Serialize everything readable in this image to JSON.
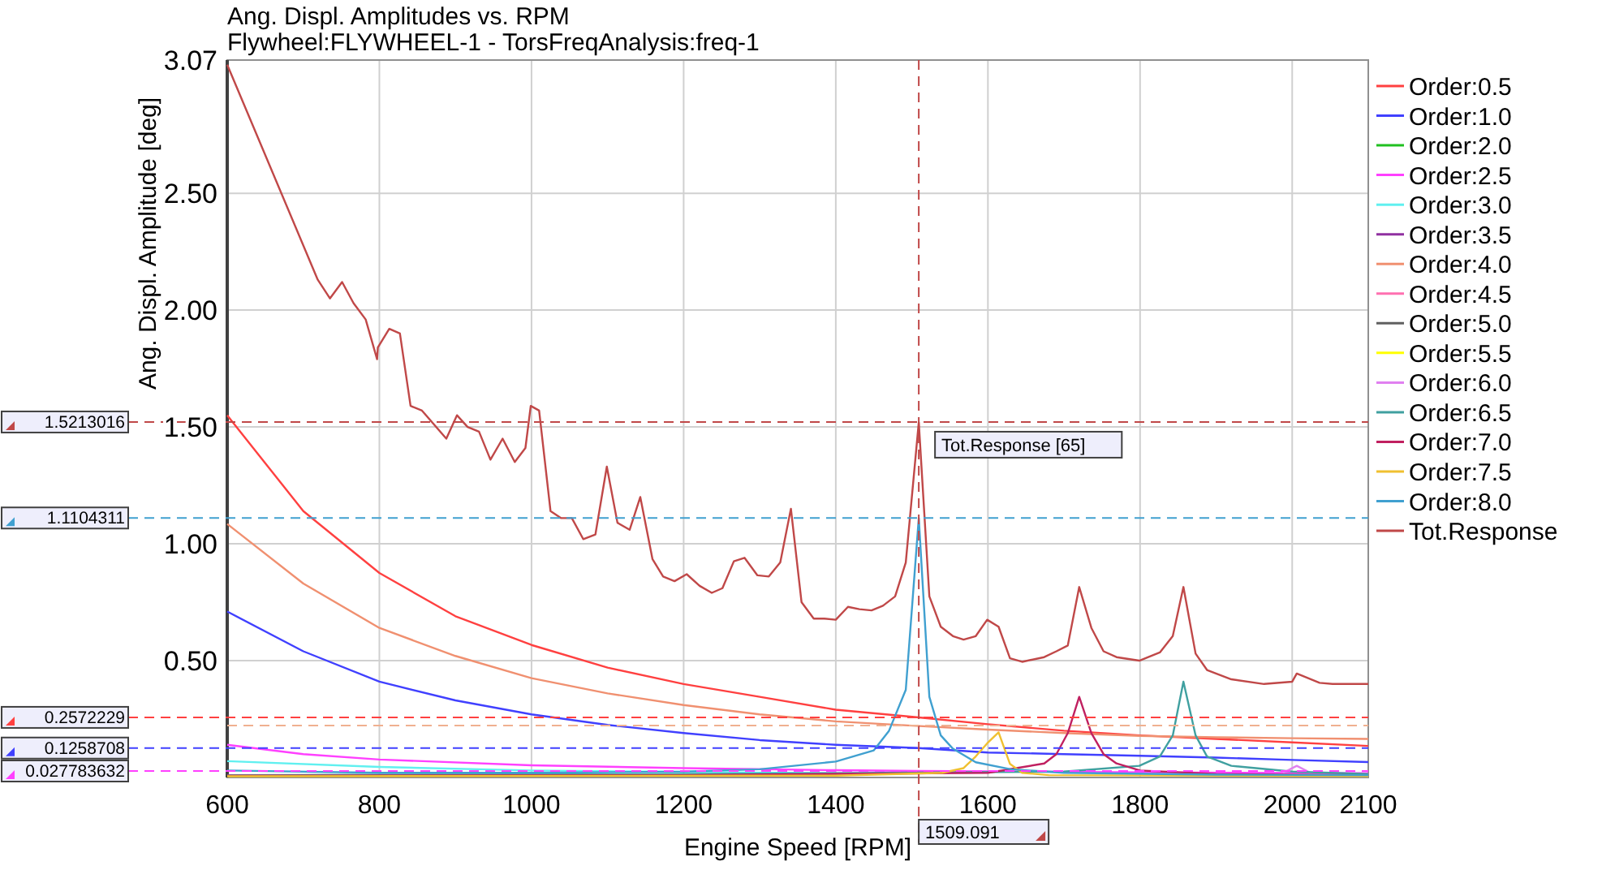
{
  "chart_data": {
    "type": "line",
    "title": "Ang. Displ. Amplitudes vs. RPM",
    "subtitle": "Flywheel:FLYWHEEL-1 - TorsFreqAnalysis:freq-1",
    "xlabel": "Engine Speed [RPM]",
    "ylabel": "Ang. Displ. Amplitude [deg]",
    "xlim": [
      600,
      2100
    ],
    "xticks": [
      600,
      800,
      1000,
      1200,
      1400,
      1600,
      1800,
      2000,
      2100
    ],
    "ylim": [
      0,
      3.07
    ],
    "yticks": [
      {
        "value": 0.5,
        "label": "0.50"
      },
      {
        "value": 1,
        "label": "1.00"
      },
      {
        "value": 1.5,
        "label": "1.50"
      },
      {
        "value": 2,
        "label": "2.00"
      },
      {
        "value": 2.5,
        "label": "2.50"
      },
      3.07
    ],
    "grid": true,
    "legend": "right",
    "series": [
      {
        "name": "Order:0.5",
        "color": "#ff4040",
        "x": [
          600,
          700,
          800,
          900,
          1000,
          1100,
          1200,
          1300,
          1400,
          1509.091,
          1600,
          1700,
          1800,
          1900,
          2000,
          2100
        ],
        "values": [
          1.55,
          1.14,
          0.875,
          0.69,
          0.567,
          0.47,
          0.4,
          0.345,
          0.29,
          0.257,
          0.228,
          0.2,
          0.18,
          0.165,
          0.15,
          0.135
        ]
      },
      {
        "name": "Order:1.0",
        "color": "#4040ff",
        "x": [
          600,
          700,
          800,
          900,
          1000,
          1100,
          1200,
          1300,
          1400,
          1509.091,
          1600,
          1700,
          1800,
          1900,
          2000,
          2100
        ],
        "values": [
          0.71,
          0.54,
          0.41,
          0.33,
          0.27,
          0.225,
          0.19,
          0.16,
          0.14,
          0.126,
          0.107,
          0.1,
          0.093,
          0.085,
          0.075,
          0.066
        ]
      },
      {
        "name": "Order:2.0",
        "color": "#20c020"
      },
      {
        "name": "Order:2.5",
        "color": "#ff40ff",
        "x": [
          600,
          700,
          800,
          1000,
          1200,
          1400,
          1509.091,
          1800,
          2100
        ],
        "values": [
          0.14,
          0.1,
          0.077,
          0.052,
          0.04,
          0.031,
          0.028,
          0.022,
          0.018
        ]
      },
      {
        "name": "Order:3.0",
        "color": "#60f0f0",
        "x": [
          600,
          800,
          1000,
          1400
        ],
        "values": [
          0.07,
          0.045,
          0.03,
          0.018
        ]
      },
      {
        "name": "Order:3.5",
        "color": "#9030a0"
      },
      {
        "name": "Order:4.0",
        "color": "#f09070",
        "x": [
          600,
          700,
          800,
          900,
          1000,
          1100,
          1200,
          1300,
          1400,
          1500,
          1600,
          1700,
          1800,
          1900,
          2000,
          2100
        ],
        "values": [
          1.085,
          0.83,
          0.64,
          0.52,
          0.425,
          0.36,
          0.31,
          0.27,
          0.24,
          0.222,
          0.205,
          0.19,
          0.178,
          0.172,
          0.168,
          0.165
        ]
      },
      {
        "name": "Order:4.5",
        "color": "#ff70b0"
      },
      {
        "name": "Order:5.0",
        "color": "#606060"
      },
      {
        "name": "Order:5.5",
        "color": "#ffff00"
      },
      {
        "name": "Order:6.0",
        "color": "#e080f0",
        "x": [
          1988,
          2006,
          2024
        ],
        "values": [
          0.02,
          0.05,
          0.02
        ]
      },
      {
        "name": "Order:6.5",
        "color": "#40a0a0",
        "x": [
          600,
          1200,
          1700,
          1799,
          1826,
          1843,
          1857,
          1873,
          1888,
          1920,
          2000,
          2100
        ],
        "values": [
          0.01,
          0.015,
          0.025,
          0.05,
          0.09,
          0.18,
          0.41,
          0.18,
          0.09,
          0.05,
          0.025,
          0.015
        ]
      },
      {
        "name": "Order:7.0",
        "color": "#c02060",
        "x": [
          600,
          1200,
          1600,
          1674,
          1690,
          1705,
          1720,
          1736,
          1752,
          1769,
          1800,
          1900,
          2100
        ],
        "values": [
          0.008,
          0.01,
          0.02,
          0.06,
          0.1,
          0.19,
          0.345,
          0.19,
          0.1,
          0.06,
          0.03,
          0.015,
          0.01
        ]
      },
      {
        "name": "Order:7.5",
        "color": "#f0c030",
        "x": [
          600,
          1400,
          1540,
          1568,
          1584,
          1599,
          1614,
          1629,
          1645,
          1680,
          2100
        ],
        "values": [
          0.005,
          0.008,
          0.02,
          0.04,
          0.09,
          0.146,
          0.193,
          0.058,
          0.02,
          0.01,
          0.006
        ]
      },
      {
        "name": "Order:8.0",
        "color": "#40a0d0",
        "x": [
          600,
          800,
          1000,
          1200,
          1300,
          1400,
          1450,
          1470,
          1492,
          1509.091,
          1523,
          1538,
          1554,
          1584,
          1630,
          1700,
          1900,
          2100
        ],
        "values": [
          0.03,
          0.02,
          0.02,
          0.025,
          0.035,
          0.068,
          0.116,
          0.2,
          0.375,
          1.11,
          0.345,
          0.18,
          0.123,
          0.065,
          0.035,
          0.02,
          0.012,
          0.01
        ]
      },
      {
        "name": "Tot.Response",
        "color": "#c04848",
        "x": [
          600,
          719,
          735,
          751,
          766,
          782,
          797,
          798,
          813,
          827,
          841,
          856,
          888,
          902,
          916,
          931,
          946,
          962,
          978,
          992,
          999,
          1010,
          1025,
          1039,
          1053,
          1068,
          1084,
          1099,
          1113,
          1129,
          1143,
          1159,
          1173,
          1188,
          1204,
          1221,
          1237,
          1251,
          1266,
          1280,
          1297,
          1312,
          1327,
          1341,
          1355,
          1371,
          1385,
          1400,
          1416,
          1431,
          1447,
          1462,
          1478,
          1492,
          1509.091,
          1523,
          1538,
          1554,
          1568,
          1584,
          1599,
          1614,
          1629,
          1645,
          1674,
          1690,
          1705,
          1720,
          1736,
          1752,
          1769,
          1799,
          1826,
          1843,
          1857,
          1873,
          1888,
          1920,
          1963,
          2000,
          2006,
          2036,
          2053,
          2100
        ],
        "values": [
          3.05,
          2.13,
          2.05,
          2.12,
          2.03,
          1.96,
          1.79,
          1.84,
          1.92,
          1.9,
          1.59,
          1.57,
          1.45,
          1.55,
          1.5,
          1.48,
          1.36,
          1.45,
          1.35,
          1.41,
          1.59,
          1.57,
          1.14,
          1.11,
          1.11,
          1.02,
          1.04,
          1.33,
          1.09,
          1.06,
          1.2,
          0.935,
          0.86,
          0.84,
          0.87,
          0.82,
          0.79,
          0.81,
          0.925,
          0.94,
          0.865,
          0.86,
          0.92,
          1.15,
          0.75,
          0.68,
          0.68,
          0.675,
          0.73,
          0.72,
          0.715,
          0.735,
          0.775,
          0.92,
          1.52,
          0.775,
          0.645,
          0.605,
          0.59,
          0.605,
          0.675,
          0.645,
          0.51,
          0.495,
          0.515,
          0.54,
          0.565,
          0.815,
          0.64,
          0.54,
          0.515,
          0.5,
          0.535,
          0.605,
          0.815,
          0.53,
          0.46,
          0.42,
          0.4,
          0.41,
          0.445,
          0.405,
          0.4,
          0.4
        ]
      }
    ],
    "ref_lines": [
      {
        "axis": "x",
        "value": 1509.091,
        "label": "1509.091",
        "color": "#c04848",
        "line_style": "dashed"
      },
      {
        "axis": "y",
        "value": 1.5213016,
        "label": "1.5213016",
        "color": "#c04848",
        "line_style": "dashed"
      },
      {
        "axis": "y",
        "value": 1.1104311,
        "label": "1.1104311",
        "color": "#40a0d0",
        "line_style": "dashed"
      },
      {
        "axis": "y",
        "value": 0.2572229,
        "label": "0.2572229",
        "color": "#ff4040",
        "line_style": "dashed"
      },
      {
        "axis": "y",
        "value": 0.222,
        "color": "#f0b090",
        "line_style": "dashed"
      },
      {
        "axis": "y",
        "value": 0.1258708,
        "label": "0.1258708",
        "color": "#4040ff",
        "line_style": "dashed"
      },
      {
        "axis": "y",
        "value": 0.027783632,
        "label": "0.027783632",
        "color": "#ff40ff",
        "line_style": "dashed"
      }
    ],
    "annotations": [
      {
        "text": "Tot.Response [65]",
        "x": 1509.091,
        "y": 1.5213016
      }
    ]
  }
}
